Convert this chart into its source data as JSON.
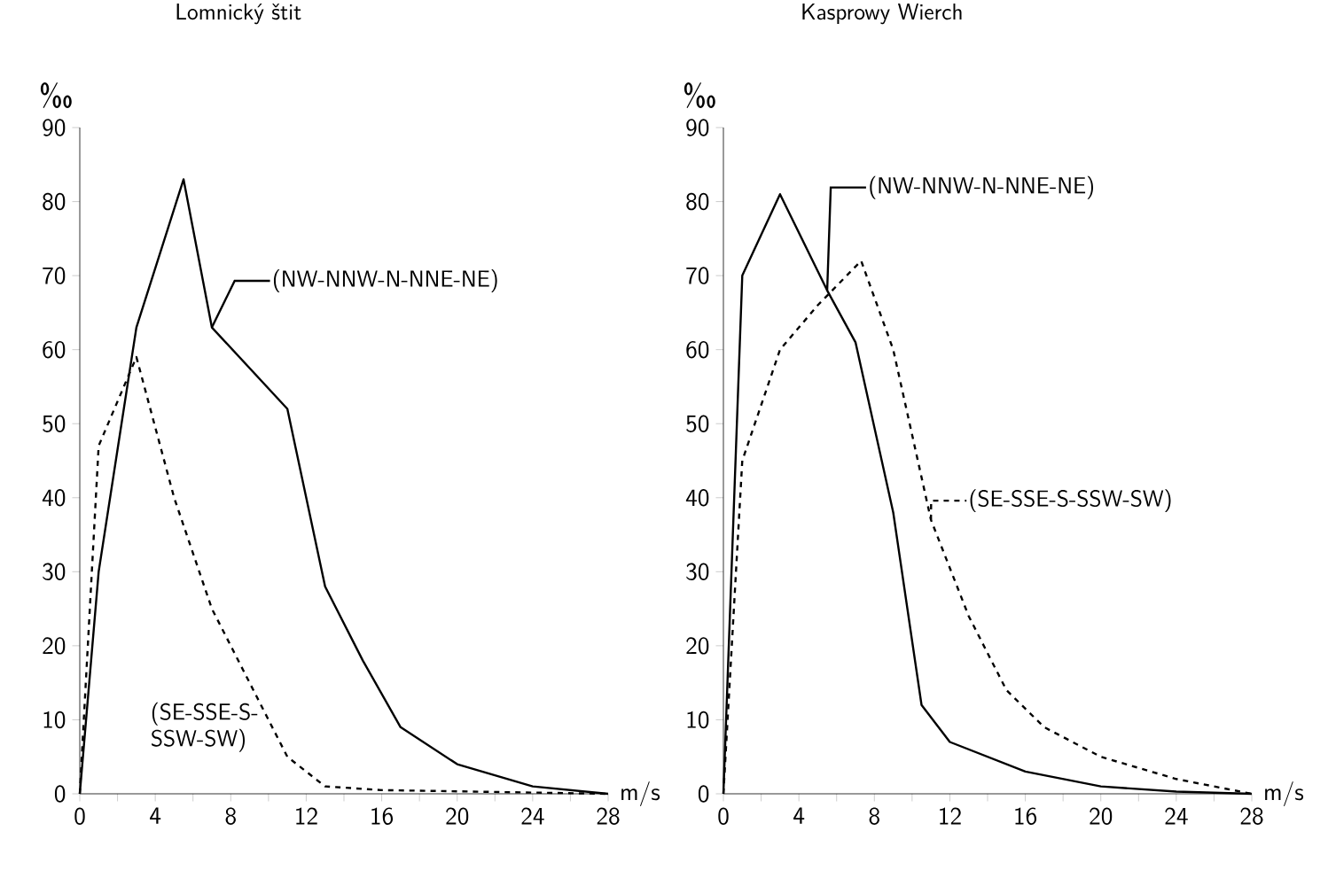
{
  "chart_data": [
    {
      "type": "line",
      "title": "Lomnický štit",
      "xlabel": "m/s",
      "ylabel": "‰",
      "xlim": [
        0,
        28
      ],
      "ylim": [
        0,
        90
      ],
      "xticks": [
        0,
        {
          "value": 2,
          "label": null
        },
        4,
        {
          "value": 6,
          "label": null
        },
        8,
        {
          "value": 10,
          "label": null
        },
        12,
        {
          "value": 14,
          "label": null
        },
        16,
        {
          "value": 18,
          "label": null
        },
        20,
        {
          "value": 22,
          "label": null
        },
        24,
        {
          "value": 26,
          "label": null
        },
        28
      ],
      "yticks": [
        0,
        10,
        20,
        30,
        40,
        50,
        60,
        70,
        80,
        90
      ],
      "series": [
        {
          "name": "(NW-NNW-N-NNE-NE)",
          "color": "#000000",
          "line_style": "solid",
          "x": [
            0,
            1,
            3,
            5.5,
            7,
            11,
            13,
            15,
            17,
            20,
            24,
            28
          ],
          "values": [
            0,
            30,
            63,
            83,
            63,
            52,
            28,
            18,
            9,
            4,
            1,
            0
          ]
        },
        {
          "name": "(SE-SSE-S-SSW-SW)",
          "color": "#000000",
          "line_style": "dashed",
          "x": [
            0,
            1,
            3,
            5,
            7,
            9,
            11,
            13,
            16,
            28
          ],
          "values": [
            0,
            47,
            59,
            40,
            25,
            15,
            5,
            1,
            0.5,
            0
          ]
        }
      ]
    },
    {
      "type": "line",
      "title": "Kasprowy Wierch",
      "xlabel": "m/s",
      "ylabel": "‰",
      "xlim": [
        0,
        28
      ],
      "ylim": [
        0,
        90
      ],
      "xticks": [
        0,
        {
          "value": 2,
          "label": null
        },
        4,
        {
          "value": 6,
          "label": null
        },
        8,
        {
          "value": 10,
          "label": null
        },
        12,
        {
          "value": 14,
          "label": null
        },
        16,
        {
          "value": 18,
          "label": null
        },
        20,
        {
          "value": 22,
          "label": null
        },
        24,
        {
          "value": 26,
          "label": null
        },
        28
      ],
      "yticks": [
        0,
        10,
        20,
        30,
        40,
        50,
        60,
        70,
        80,
        90
      ],
      "series": [
        {
          "name": "(NW-NNW-N-NNE-NE)",
          "color": "#000000",
          "line_style": "solid",
          "x": [
            0,
            1,
            3,
            5.5,
            7,
            9,
            10.5,
            12,
            16,
            20,
            24,
            28
          ],
          "values": [
            0,
            70,
            81,
            68,
            61,
            38,
            12,
            7,
            3,
            1,
            0.3,
            0
          ]
        },
        {
          "name": "(SE-SSE-S-SSW-SW)",
          "color": "#000000",
          "line_style": "dashed",
          "x": [
            0,
            1,
            3,
            5,
            7.3,
            9,
            11,
            13,
            15,
            17,
            20,
            24,
            28
          ],
          "values": [
            0,
            45,
            60,
            66,
            72,
            60,
            37,
            24,
            14,
            9,
            5,
            2,
            0
          ]
        }
      ]
    }
  ]
}
